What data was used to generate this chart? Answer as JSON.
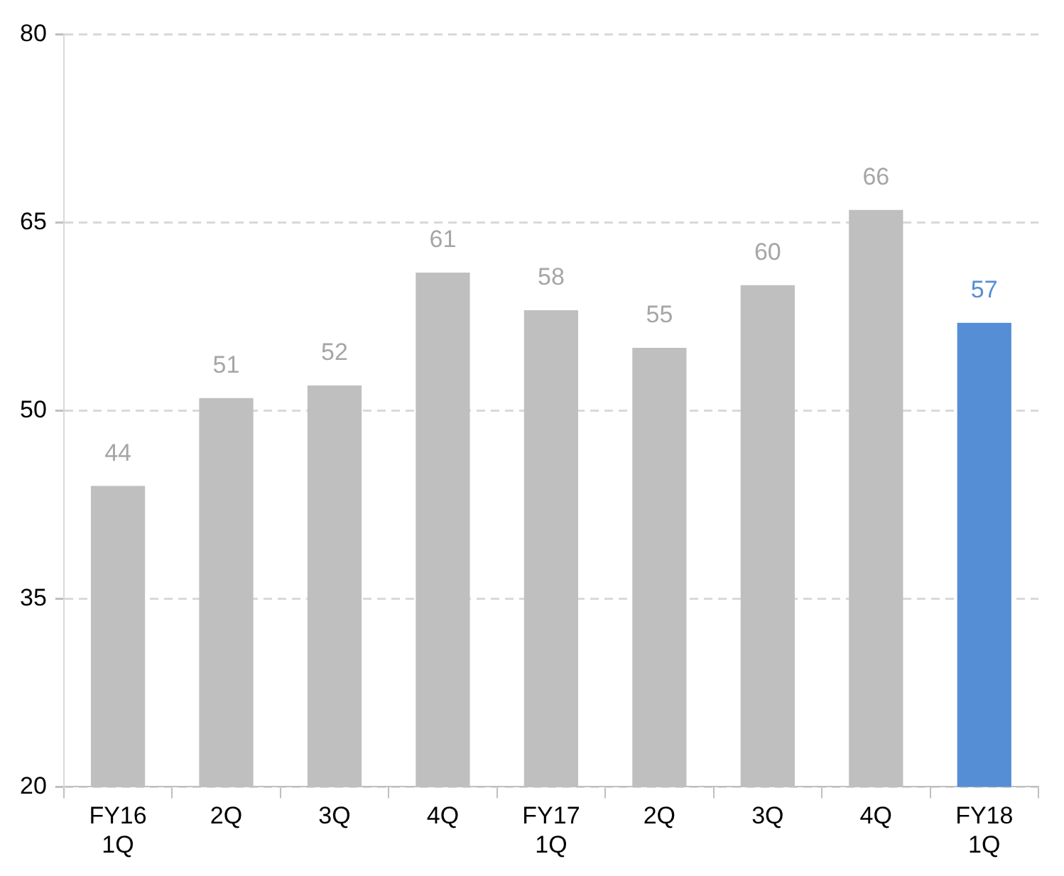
{
  "chart_data": {
    "type": "bar",
    "categories": [
      "FY16\n1Q",
      "2Q",
      "3Q",
      "4Q",
      "FY17\n1Q",
      "2Q",
      "3Q",
      "4Q",
      "FY18\n1Q"
    ],
    "values": [
      44,
      51,
      52,
      61,
      58,
      55,
      60,
      66,
      57
    ],
    "colors": [
      "#bfbfbf",
      "#bfbfbf",
      "#bfbfbf",
      "#bfbfbf",
      "#bfbfbf",
      "#bfbfbf",
      "#bfbfbf",
      "#bfbfbf",
      "#558ed5"
    ],
    "ylim": [
      20,
      80
    ],
    "yticks": [
      20,
      35,
      50,
      65,
      80
    ],
    "grid": "y",
    "data_labels": true,
    "legend": false
  }
}
